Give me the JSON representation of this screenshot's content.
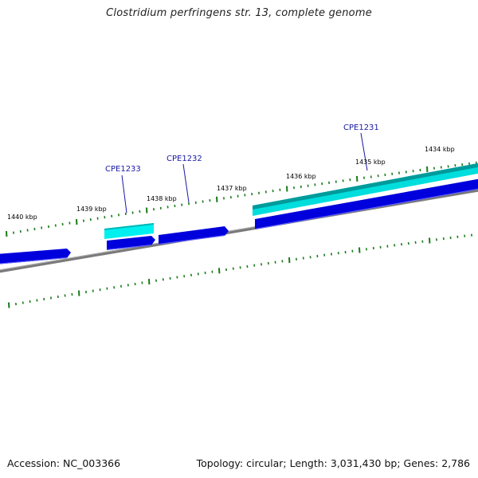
{
  "title": "Clostridium perfringens str. 13, complete genome",
  "footer": {
    "accession": "Accession: NC_003366",
    "summary": "Topology: circular; Length: 3,031,430 bp; Genes: 2,786"
  },
  "colors": {
    "backbone": "#777777",
    "tick": "#1a7a1a",
    "cds": "#0000dd",
    "gene": "#00cccc",
    "gene_dark": "#009999",
    "label": "#1a1aa6"
  },
  "scale_labels": [
    "1440 kbp",
    "1439 kbp",
    "1438 kbp",
    "1437 kbp",
    "1436 kbp",
    "1435 kbp",
    "1434 kbp"
  ],
  "gene_labels": [
    "CPE1233",
    "CPE1232",
    "CPE1231"
  ]
}
